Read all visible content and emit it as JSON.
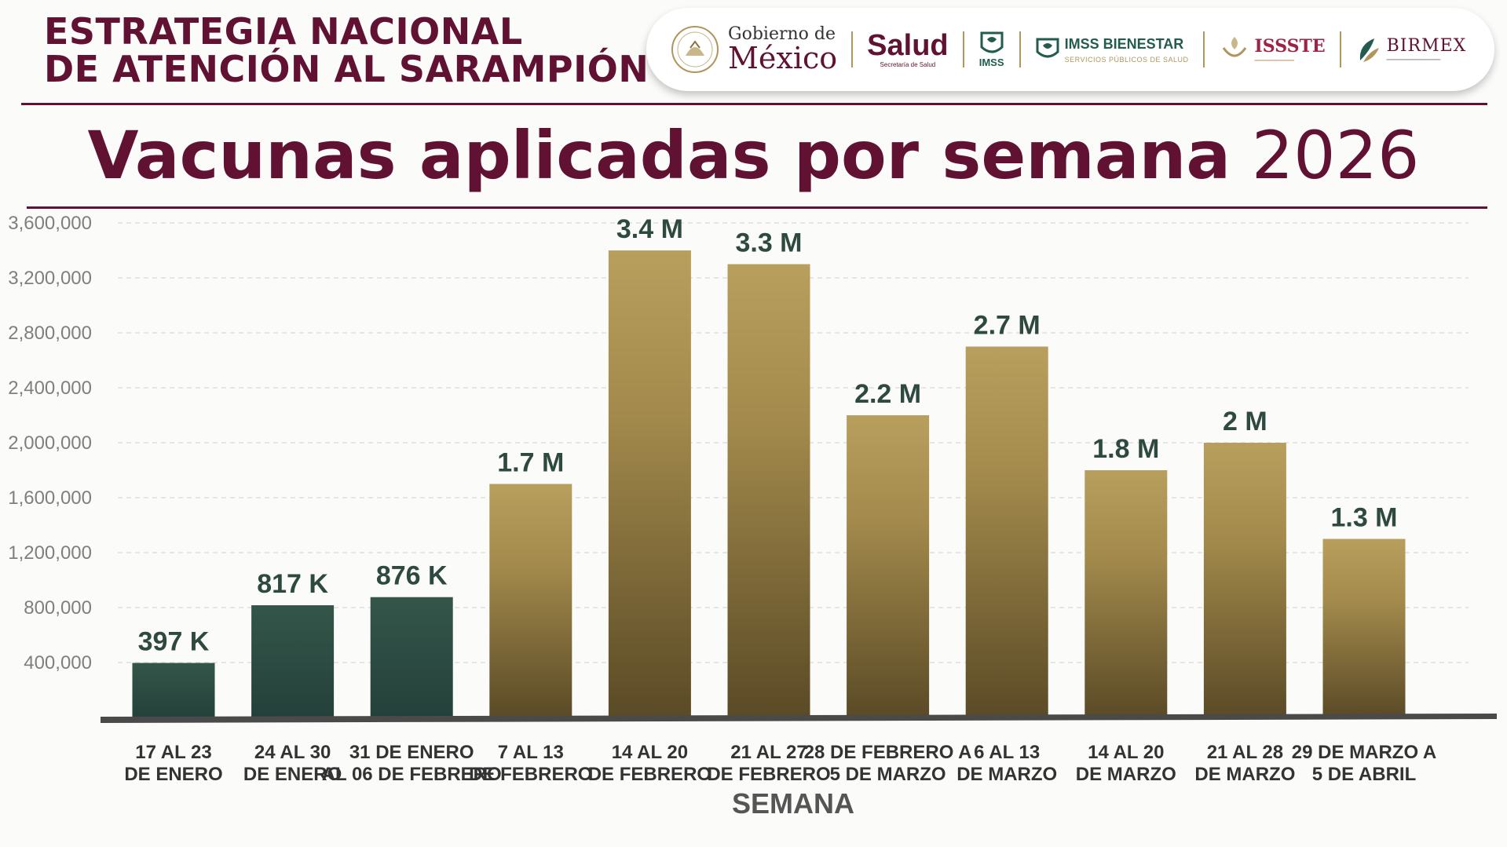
{
  "header": {
    "line1": "ESTRATEGIA NACIONAL",
    "line2": "DE ATENCIÓN AL SARAMPIÓN"
  },
  "logos": {
    "gobierno_line1": "Gobierno de",
    "gobierno_line2": "México",
    "salud_main": "Salud",
    "salud_sub": "Secretaría de Salud",
    "imss": "IMSS",
    "imss_bienestar": "IMSS BIENESTAR",
    "imss_bienestar_sub": "SERVICIOS PÚBLICOS DE SALUD",
    "issste": "ISSSTE",
    "birmex": "BIRMEX"
  },
  "title": {
    "bold": "Vacunas aplicadas por semana",
    "year": "2026"
  },
  "colors": {
    "maroon": "#611232",
    "green": "#2e4a40",
    "gold_top": "#b89f5e",
    "gold_bottom": "#5a4a26"
  },
  "chart_data": {
    "type": "bar",
    "title": "Vacunas aplicadas por semana 2026",
    "xlabel": "SEMANA",
    "ylabel": "",
    "ylim": [
      0,
      3800000
    ],
    "yticks": [
      400000,
      800000,
      1200000,
      1600000,
      2000000,
      2400000,
      2800000,
      3200000,
      3600000
    ],
    "ytick_labels": [
      "400,000",
      "800,000",
      "1,200,000",
      "1,600,000",
      "2,000,000",
      "2,400,000",
      "2,800,000",
      "3,200,000",
      "3,600,000"
    ],
    "grid": true,
    "categories": [
      [
        "17 AL 23",
        "DE ENERO"
      ],
      [
        "24 AL 30",
        "DE ENERO"
      ],
      [
        "31  DE ENERO",
        "AL 06 DE FEBRERO"
      ],
      [
        "7 AL 13",
        "DE FEBRERO"
      ],
      [
        "14 AL 20",
        "DE FEBRERO"
      ],
      [
        "21  AL 27",
        "DE FEBRERO"
      ],
      [
        "28 DE FEBRERO A",
        "5 DE MARZO"
      ],
      [
        "6  AL 13",
        "DE MARZO"
      ],
      [
        "14  AL 20",
        "DE MARZO"
      ],
      [
        "21  AL 28",
        "DE MARZO"
      ],
      [
        "29  DE MARZO A",
        "5 DE ABRIL"
      ]
    ],
    "values": [
      397000,
      817000,
      876000,
      1700000,
      3400000,
      3300000,
      2200000,
      2700000,
      1800000,
      2000000,
      1300000
    ],
    "data_labels": [
      "397 K",
      "817 K",
      "876 K",
      "1.7 M",
      "3.4 M",
      "3.3 M",
      "2.2 M",
      "2.7 M",
      "1.8 M",
      "2 M",
      "1.3 M"
    ],
    "bar_style": [
      "green",
      "green",
      "green",
      "gold",
      "gold",
      "gold",
      "gold",
      "gold",
      "gold",
      "gold",
      "gold"
    ]
  }
}
